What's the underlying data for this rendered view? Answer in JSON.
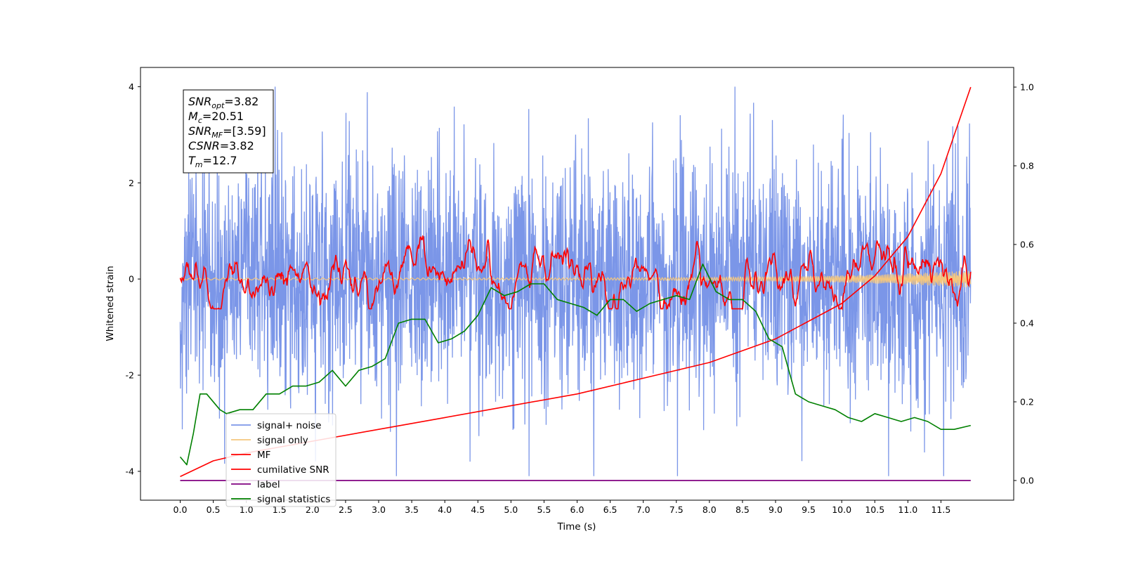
{
  "chart_data": {
    "type": "line",
    "xlabel": "Time (s)",
    "ylabel_left": "Whitened strain",
    "ylabel_right": "",
    "xlim": [
      -0.6,
      12.6
    ],
    "ylim_left": [
      -4.6,
      4.4
    ],
    "ylim_right": [
      -0.05,
      1.05
    ],
    "x_ticks": [
      "0.0",
      "0.5",
      "1.0",
      "1.5",
      "2.0",
      "2.5",
      "3.0",
      "3.5",
      "4.0",
      "4.5",
      "5.0",
      "5.5",
      "6.0",
      "6.5",
      "7.0",
      "7.5",
      "8.0",
      "8.5",
      "9.0",
      "9.5",
      "10.0",
      "10.5",
      "11.0",
      "11.5"
    ],
    "y_ticks_left": [
      "-4",
      "-2",
      "0",
      "2",
      "4"
    ],
    "y_ticks_right": [
      "0.0",
      "0.2",
      "0.4",
      "0.6",
      "0.8",
      "1.0"
    ],
    "grid": false,
    "legend_position": "lower-left",
    "annotation": {
      "position": "top-left",
      "lines": [
        {
          "var": "SNR",
          "sub": "opt",
          "value": "=3.82"
        },
        {
          "var": "M",
          "sub": "c",
          "value": "=20.51"
        },
        {
          "var": "SNR",
          "sub": "MF",
          "value": "=[3.59]"
        },
        {
          "var": "CSNR",
          "sub": "",
          "value": "=3.82"
        },
        {
          "var": "T",
          "sub": "m",
          "value": "=12.7"
        }
      ]
    },
    "series": [
      {
        "name": "signal+ noise",
        "color": "#7b96e8",
        "axis": "left",
        "kind": "noise band",
        "range": [
          -3.5,
          4.0
        ]
      },
      {
        "name": "signal only",
        "color": "#f5c77e",
        "axis": "left",
        "kind": "chirp, near zero, amplitude grows toward end"
      },
      {
        "name": "MF",
        "color": "#ff0000",
        "axis": "left",
        "kind": "oscillating, range about [-0.6, 1.0]"
      },
      {
        "name": "cumilative SNR",
        "color": "#ff0000",
        "axis": "right",
        "x": [
          0.0,
          0.5,
          1.0,
          2.0,
          3.0,
          4.0,
          5.0,
          6.0,
          7.0,
          8.0,
          9.0,
          10.0,
          10.5,
          11.0,
          11.5,
          11.95
        ],
        "values": [
          0.01,
          0.05,
          0.07,
          0.1,
          0.13,
          0.16,
          0.19,
          0.22,
          0.26,
          0.3,
          0.36,
          0.45,
          0.52,
          0.62,
          0.78,
          1.0
        ]
      },
      {
        "name": "label",
        "color": "#800080",
        "axis": "right",
        "x": [
          0.0,
          11.95
        ],
        "values": [
          0.0,
          0.0
        ]
      },
      {
        "name": "signal statistics",
        "color": "#008000",
        "axis": "right",
        "x": [
          0.0,
          0.1,
          0.2,
          0.3,
          0.4,
          0.6,
          0.7,
          0.9,
          1.1,
          1.3,
          1.5,
          1.7,
          1.9,
          2.1,
          2.3,
          2.5,
          2.7,
          2.9,
          3.1,
          3.3,
          3.5,
          3.7,
          3.9,
          4.1,
          4.3,
          4.5,
          4.7,
          4.9,
          5.1,
          5.3,
          5.5,
          5.7,
          5.9,
          6.1,
          6.3,
          6.5,
          6.7,
          6.9,
          7.1,
          7.3,
          7.5,
          7.7,
          7.9,
          8.1,
          8.3,
          8.5,
          8.7,
          8.9,
          9.1,
          9.3,
          9.5,
          9.7,
          9.9,
          10.1,
          10.3,
          10.5,
          10.7,
          10.9,
          11.1,
          11.3,
          11.5,
          11.7,
          11.95
        ],
        "values": [
          0.06,
          0.04,
          0.12,
          0.22,
          0.22,
          0.18,
          0.17,
          0.18,
          0.18,
          0.22,
          0.22,
          0.24,
          0.24,
          0.25,
          0.28,
          0.24,
          0.28,
          0.29,
          0.31,
          0.4,
          0.41,
          0.41,
          0.35,
          0.36,
          0.38,
          0.42,
          0.49,
          0.47,
          0.48,
          0.5,
          0.5,
          0.46,
          0.45,
          0.44,
          0.42,
          0.46,
          0.46,
          0.43,
          0.45,
          0.46,
          0.47,
          0.46,
          0.55,
          0.48,
          0.46,
          0.46,
          0.43,
          0.36,
          0.34,
          0.22,
          0.2,
          0.19,
          0.18,
          0.16,
          0.15,
          0.17,
          0.16,
          0.15,
          0.16,
          0.15,
          0.13,
          0.13,
          0.14
        ]
      }
    ]
  }
}
